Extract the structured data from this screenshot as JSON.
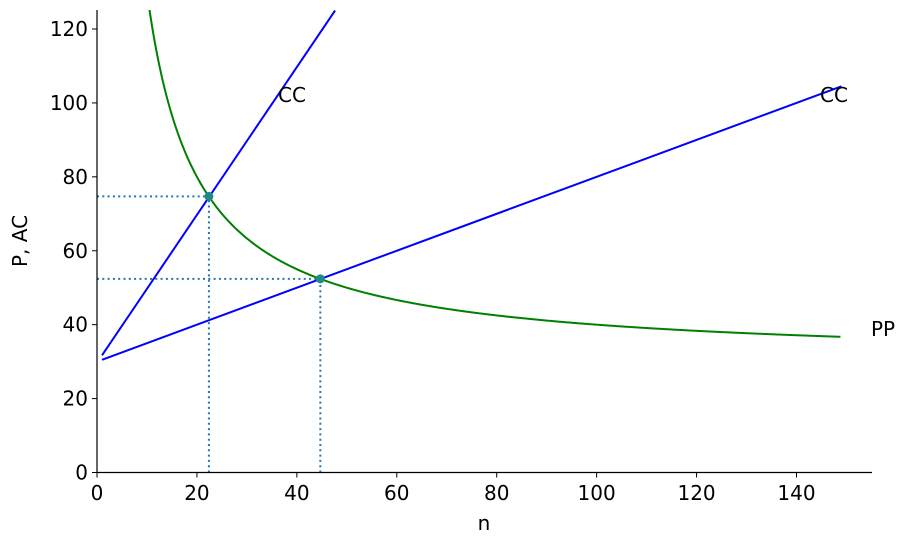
{
  "chart_data": {
    "type": "line",
    "title": "",
    "xlabel": "n",
    "ylabel": "P, AC",
    "xlim": [
      0,
      150
    ],
    "ylim": [
      0,
      125
    ],
    "xticks": [
      0,
      20,
      40,
      60,
      80,
      100,
      120,
      140
    ],
    "yticks": [
      0,
      20,
      40,
      60,
      80,
      100,
      120
    ],
    "grid": false,
    "legend": null,
    "series": [
      {
        "name": "CC (steep)",
        "label": "CC",
        "color": "#0000ff",
        "formula": "P = 29.7 + 2.0 n",
        "x": [
          1,
          47.65
        ],
        "y": [
          31.7,
          125
        ]
      },
      {
        "name": "CC (flat)",
        "label": "CC",
        "color": "#0000ff",
        "formula": "P = 30 + 0.5 n",
        "x": [
          1,
          149
        ],
        "y": [
          30.5,
          104.5
        ]
      },
      {
        "name": "PP",
        "label": "PP",
        "color": "#008000",
        "formula": "P = 30 + 1000 / n",
        "x": [
          10.5,
          12,
          15,
          20,
          22.4,
          30,
          40,
          44.7,
          60,
          80,
          100,
          120,
          149
        ],
        "y": [
          125.2,
          113.3,
          96.7,
          80,
          74.6,
          63.3,
          55,
          52.4,
          46.7,
          42.5,
          40,
          38.3,
          36.7
        ]
      }
    ],
    "points": [
      {
        "x": 22.4,
        "y": 74.7,
        "color": "#1f77b4"
      },
      {
        "x": 44.7,
        "y": 52.4,
        "color": "#1f77b4"
      }
    ],
    "reference_lines": [
      {
        "type": "dotted",
        "color": "#1f77b4",
        "from": [
          0,
          74.7
        ],
        "to": [
          22.4,
          74.7
        ]
      },
      {
        "type": "dotted",
        "color": "#1f77b4",
        "from": [
          22.4,
          0
        ],
        "to": [
          22.4,
          74.7
        ]
      },
      {
        "type": "dotted",
        "color": "#1f77b4",
        "from": [
          0,
          52.4
        ],
        "to": [
          44.7,
          52.4
        ]
      },
      {
        "type": "dotted",
        "color": "#1f77b4",
        "from": [
          44.7,
          0
        ],
        "to": [
          44.7,
          52.4
        ]
      }
    ],
    "annotations": [
      {
        "text": "CC",
        "x": 35,
        "y": 100
      },
      {
        "text": "CC",
        "x": 140,
        "y": 100
      },
      {
        "text": "PP",
        "x": 150,
        "y": 36.7
      }
    ]
  },
  "labels": {
    "xlabel": "n",
    "ylabel": "P, AC",
    "cc1": "CC",
    "cc2": "CC",
    "pp": "PP",
    "xticks": [
      "0",
      "20",
      "40",
      "60",
      "80",
      "100",
      "120",
      "140"
    ],
    "yticks": [
      "0",
      "20",
      "40",
      "60",
      "80",
      "100",
      "120"
    ]
  }
}
